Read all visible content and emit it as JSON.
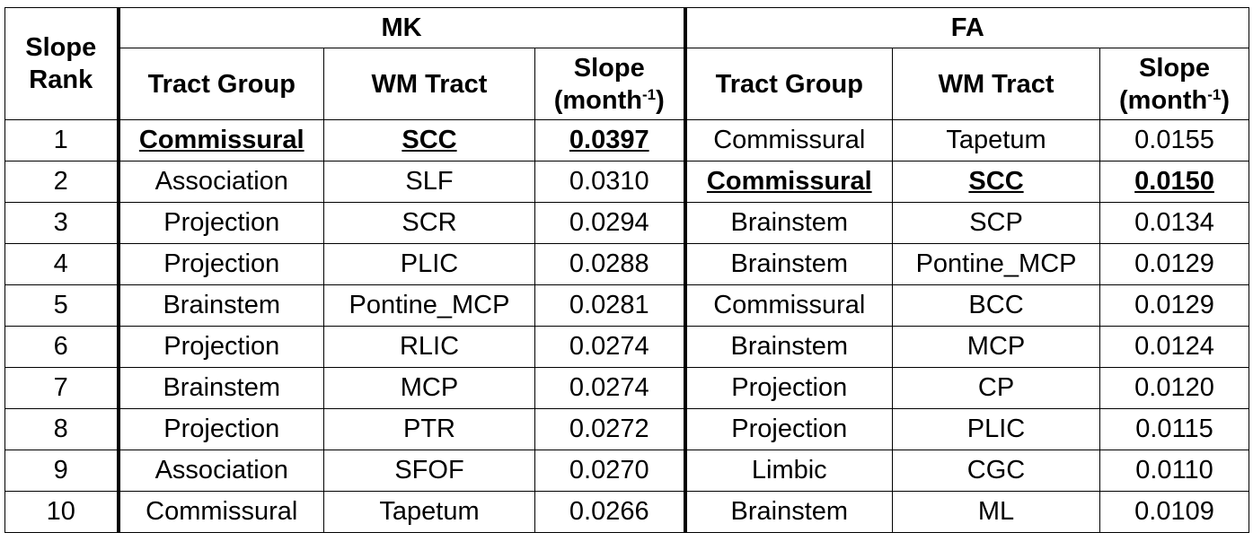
{
  "table": {
    "rank_header": "Slope Rank",
    "groups": [
      "MK",
      "FA"
    ],
    "subheaders": {
      "group": "Tract Group",
      "tract": "WM Tract",
      "slope": {
        "label": "Slope (month",
        "superscript": "-1",
        "suffix": ")"
      }
    },
    "rows": [
      {
        "rank": 1,
        "mk": {
          "group": "Commissural",
          "tract": "SCC",
          "slope": "0.0397",
          "highlight": true
        },
        "fa": {
          "group": "Commissural",
          "tract": "Tapetum",
          "slope": "0.0155",
          "highlight": false
        }
      },
      {
        "rank": 2,
        "mk": {
          "group": "Association",
          "tract": "SLF",
          "slope": "0.0310",
          "highlight": false
        },
        "fa": {
          "group": "Commissural",
          "tract": "SCC",
          "slope": "0.0150",
          "highlight": true
        }
      },
      {
        "rank": 3,
        "mk": {
          "group": "Projection",
          "tract": "SCR",
          "slope": "0.0294",
          "highlight": false
        },
        "fa": {
          "group": "Brainstem",
          "tract": "SCP",
          "slope": "0.0134",
          "highlight": false
        }
      },
      {
        "rank": 4,
        "mk": {
          "group": "Projection",
          "tract": "PLIC",
          "slope": "0.0288",
          "highlight": false
        },
        "fa": {
          "group": "Brainstem",
          "tract": "Pontine_MCP",
          "slope": "0.0129",
          "highlight": false
        }
      },
      {
        "rank": 5,
        "mk": {
          "group": "Brainstem",
          "tract": "Pontine_MCP",
          "slope": "0.0281",
          "highlight": false
        },
        "fa": {
          "group": "Commissural",
          "tract": "BCC",
          "slope": "0.0129",
          "highlight": false
        }
      },
      {
        "rank": 6,
        "mk": {
          "group": "Projection",
          "tract": "RLIC",
          "slope": "0.0274",
          "highlight": false
        },
        "fa": {
          "group": "Brainstem",
          "tract": "MCP",
          "slope": "0.0124",
          "highlight": false
        }
      },
      {
        "rank": 7,
        "mk": {
          "group": "Brainstem",
          "tract": "MCP",
          "slope": "0.0274",
          "highlight": false
        },
        "fa": {
          "group": "Projection",
          "tract": "CP",
          "slope": "0.0120",
          "highlight": false
        }
      },
      {
        "rank": 8,
        "mk": {
          "group": "Projection",
          "tract": "PTR",
          "slope": "0.0272",
          "highlight": false
        },
        "fa": {
          "group": "Projection",
          "tract": "PLIC",
          "slope": "0.0115",
          "highlight": false
        }
      },
      {
        "rank": 9,
        "mk": {
          "group": "Association",
          "tract": "SFOF",
          "slope": "0.0270",
          "highlight": false
        },
        "fa": {
          "group": "Limbic",
          "tract": "CGC",
          "slope": "0.0110",
          "highlight": false
        }
      },
      {
        "rank": 10,
        "mk": {
          "group": "Commissural",
          "tract": "Tapetum",
          "slope": "0.0266",
          "highlight": false
        },
        "fa": {
          "group": "Brainstem",
          "tract": "ML",
          "slope": "0.0109",
          "highlight": false
        }
      }
    ]
  }
}
